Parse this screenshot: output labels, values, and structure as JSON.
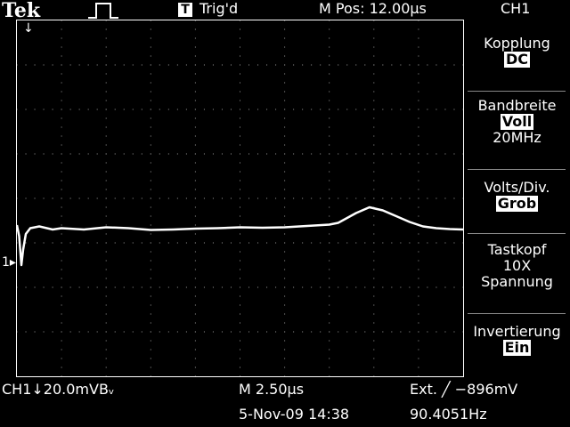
{
  "header": {
    "brand": "Tek",
    "pulse_icon": "square-pulse-icon",
    "trigger_badge": "T",
    "trigger_state": "Trig'd",
    "mpos": "M Pos: 12.00µs",
    "channel": "CH1"
  },
  "markers": {
    "trigger_position": "↓",
    "channel_ground": "1▸"
  },
  "menu": {
    "coupling_label": "Kopplung",
    "coupling_value": "DC",
    "bandwidth_label": "Bandbreite",
    "bandwidth_value": "Voll",
    "bandwidth_sub": "20MHz",
    "volts_div_label": "Volts/Div.",
    "volts_div_value": "Grob",
    "probe_label": "Tastkopf",
    "probe_value": "10X",
    "probe_sub": "Spannung",
    "invert_label": "Invertierung",
    "invert_value": "Ein"
  },
  "status": {
    "channel_scale": "CH1↓20.0mVBᵥ",
    "timebase": "M 2.50µs",
    "trigger_ext": "Ext. ╱ −896mV",
    "date_time": "5-Nov-09 14:38",
    "frequency": "90.4051Hz"
  },
  "chart_data": {
    "type": "line",
    "title": "",
    "xlabel": "",
    "ylabel": "",
    "grid": true,
    "x_divisions": 10,
    "y_divisions": 8,
    "units": {
      "x": "µs/div",
      "y": "mV/div"
    },
    "x_scale": 2.5,
    "y_scale": 20.0,
    "series": [
      {
        "color": "#ffffff",
        "x": [
          0.0,
          0.05,
          0.1,
          0.14,
          0.2,
          0.3,
          0.5,
          0.8,
          1.0,
          1.5,
          2.0,
          2.5,
          3.0,
          3.5,
          4.0,
          4.5,
          5.0,
          5.5,
          6.0,
          6.5,
          7.0,
          7.2,
          7.6,
          7.9,
          8.2,
          8.5,
          8.8,
          9.1,
          9.4,
          9.7,
          10.0
        ],
        "y": [
          -0.05,
          -0.3,
          -0.95,
          -0.6,
          -0.25,
          -0.12,
          -0.08,
          -0.15,
          -0.12,
          -0.15,
          -0.1,
          -0.12,
          -0.16,
          -0.15,
          -0.13,
          -0.12,
          -0.1,
          -0.11,
          -0.1,
          -0.07,
          -0.04,
          0.0,
          0.22,
          0.35,
          0.28,
          0.15,
          0.02,
          -0.08,
          -0.12,
          -0.14,
          -0.15
        ]
      }
    ]
  }
}
